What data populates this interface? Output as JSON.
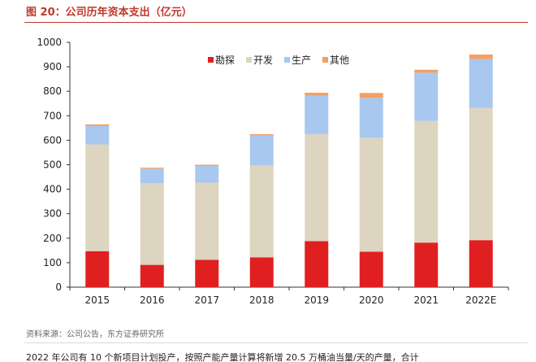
{
  "figure": {
    "title": "图 20：公司历年资本支出（亿元）",
    "source": "资料来源：公司公告，东方证券研究所",
    "truncated_text": "2022 年公司有 10 个新项目计划投产，按照产能产量计算将新增 20.5 万桶油当量/天的产量，合计"
  },
  "colors": {
    "勘探": "#e02020",
    "开发": "#ddd5c0",
    "生产": "#a8c8f0",
    "其他": "#f5a060",
    "axis": "#333333"
  },
  "chart_data": {
    "type": "bar",
    "stacked": true,
    "title": "公司历年资本支出（亿元）",
    "xlabel": "",
    "ylabel": "",
    "categories": [
      "2015",
      "2016",
      "2017",
      "2018",
      "2019",
      "2020",
      "2021",
      "2022E"
    ],
    "series": [
      {
        "name": "勘探",
        "values": [
          147,
          91,
          112,
          122,
          188,
          145,
          182,
          192
        ]
      },
      {
        "name": "开发",
        "values": [
          436,
          333,
          315,
          375,
          437,
          465,
          497,
          540
        ]
      },
      {
        "name": "生产",
        "values": [
          75,
          60,
          68,
          123,
          157,
          163,
          197,
          200
        ]
      },
      {
        "name": "其他",
        "values": [
          7,
          4,
          5,
          5,
          12,
          20,
          12,
          18
        ]
      }
    ],
    "ylim": [
      0,
      1000
    ],
    "yticks": [
      "0",
      "100",
      "200",
      "300",
      "400",
      "500",
      "600",
      "700",
      "800",
      "900",
      "1000"
    ],
    "legend_position": "top-center",
    "grid": false
  }
}
